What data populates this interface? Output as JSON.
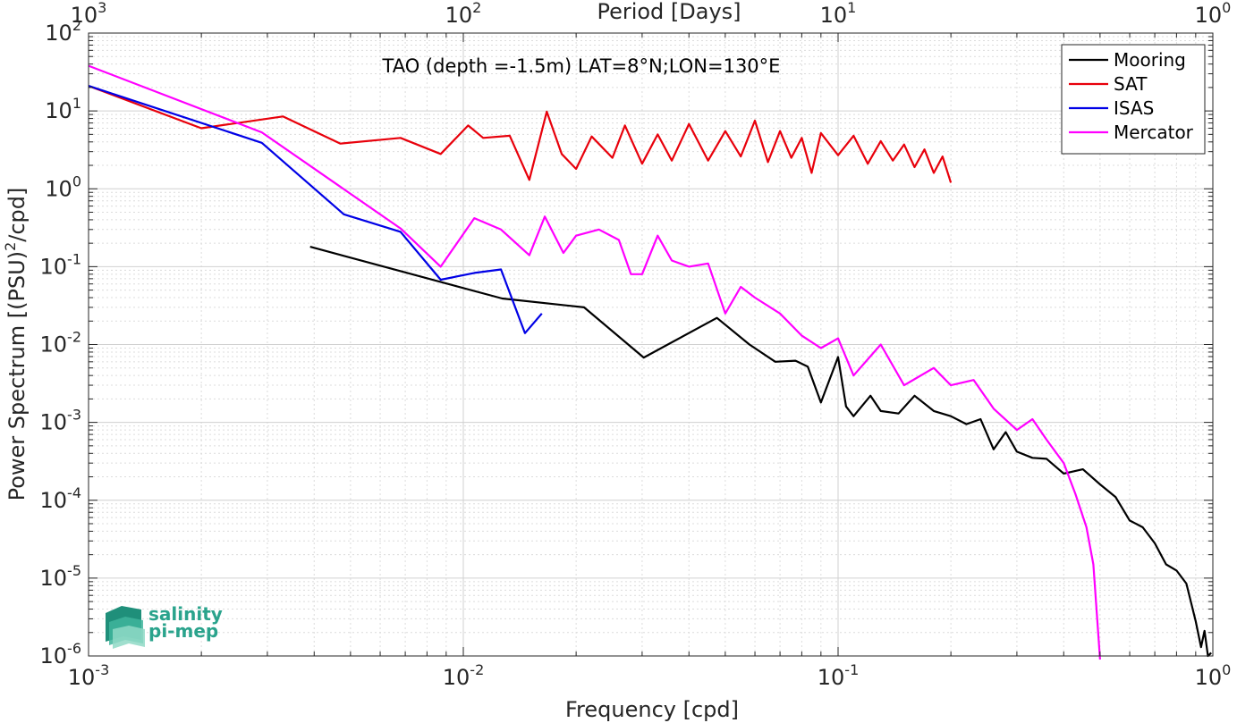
{
  "chart_data": {
    "type": "line",
    "title": "TAO (depth =-1.5m) LAT=8°N;LON=130°E",
    "xlabel": "Frequency [cpd]",
    "ylabel": "Power Spectrum [(PSU)",
    "ylabel_sup": "2",
    "ylabel_tail": "/cpd]",
    "x2label": "Period [Days]",
    "xscale": "log",
    "yscale": "log",
    "xlim": [
      0.001,
      1
    ],
    "ylim": [
      1e-06,
      100
    ],
    "grid": true,
    "legend_position": "top-right",
    "x_ticks": [
      {
        "base": "10",
        "exp": "-3"
      },
      {
        "base": "10",
        "exp": "-2"
      },
      {
        "base": "10",
        "exp": "-1"
      },
      {
        "base": "10",
        "exp": "0"
      }
    ],
    "x2_ticks": [
      {
        "base": "10",
        "exp": "3"
      },
      {
        "base": "10",
        "exp": "2"
      },
      {
        "base": "10",
        "exp": "1"
      },
      {
        "base": "10",
        "exp": "0"
      }
    ],
    "y_ticks": [
      {
        "base": "10",
        "exp": "-6"
      },
      {
        "base": "10",
        "exp": "-5"
      },
      {
        "base": "10",
        "exp": "-4"
      },
      {
        "base": "10",
        "exp": "-3"
      },
      {
        "base": "10",
        "exp": "-2"
      },
      {
        "base": "10",
        "exp": "-1"
      },
      {
        "base": "10",
        "exp": "0"
      },
      {
        "base": "10",
        "exp": "1"
      },
      {
        "base": "10",
        "exp": "2"
      }
    ],
    "series": [
      {
        "name": "Mooring",
        "color": "#000000",
        "x": [
          0.0039,
          0.0127,
          0.021,
          0.0303,
          0.0475,
          0.058,
          0.068,
          0.077,
          0.083,
          0.09,
          0.1,
          0.105,
          0.11,
          0.122,
          0.13,
          0.145,
          0.16,
          0.18,
          0.2,
          0.22,
          0.24,
          0.26,
          0.28,
          0.3,
          0.33,
          0.36,
          0.4,
          0.45,
          0.5,
          0.55,
          0.6,
          0.65,
          0.7,
          0.75,
          0.8,
          0.85,
          0.9,
          0.93,
          0.95,
          0.97,
          0.99
        ],
        "y": [
          0.18,
          0.039,
          0.03,
          0.0068,
          0.022,
          0.01,
          0.006,
          0.0062,
          0.0052,
          0.0018,
          0.0069,
          0.0016,
          0.0012,
          0.0022,
          0.0014,
          0.0013,
          0.0022,
          0.0014,
          0.0012,
          0.00095,
          0.0011,
          0.00045,
          0.00075,
          0.00042,
          0.00035,
          0.00034,
          0.00022,
          0.00025,
          0.00016,
          0.00011,
          5.5e-05,
          4.5e-05,
          2.8e-05,
          1.5e-05,
          1.25e-05,
          8.5e-06,
          2.8e-06,
          1.3e-06,
          2.1e-06,
          1e-06,
          1.1e-06
        ]
      },
      {
        "name": "SAT",
        "color": "#e8000b",
        "x": [
          0.001,
          0.002,
          0.0033,
          0.0047,
          0.0068,
          0.0087,
          0.0103,
          0.0113,
          0.0133,
          0.015,
          0.0167,
          0.0183,
          0.02,
          0.022,
          0.025,
          0.027,
          0.03,
          0.033,
          0.036,
          0.04,
          0.045,
          0.05,
          0.055,
          0.06,
          0.065,
          0.07,
          0.075,
          0.08,
          0.085,
          0.09,
          0.1,
          0.11,
          0.12,
          0.13,
          0.14,
          0.15,
          0.16,
          0.17,
          0.18,
          0.19,
          0.2
        ],
        "y": [
          21,
          6,
          8.5,
          3.8,
          4.5,
          2.8,
          6.5,
          4.5,
          4.8,
          1.3,
          9.8,
          2.8,
          1.8,
          4.7,
          2.5,
          6.5,
          2.1,
          5,
          2.3,
          6.8,
          2.3,
          5.5,
          2.6,
          7.5,
          2.2,
          5.5,
          2.5,
          4.5,
          1.6,
          5.2,
          2.7,
          4.8,
          2.1,
          4.1,
          2.3,
          3.7,
          1.9,
          3.2,
          1.6,
          2.6,
          1.2
        ]
      },
      {
        "name": "ISAS",
        "color": "#0000e6",
        "x": [
          0.001,
          0.0029,
          0.0048,
          0.0068,
          0.0087,
          0.0107,
          0.0126,
          0.0146,
          0.0162
        ],
        "y": [
          21,
          3.9,
          0.47,
          0.28,
          0.068,
          0.083,
          0.092,
          0.014,
          0.025
        ]
      },
      {
        "name": "Mercator",
        "color": "#ff00ff",
        "x": [
          0.001,
          0.0029,
          0.0068,
          0.0087,
          0.0107,
          0.0126,
          0.015,
          0.0165,
          0.0185,
          0.02,
          0.023,
          0.026,
          0.028,
          0.03,
          0.033,
          0.036,
          0.04,
          0.045,
          0.05,
          0.055,
          0.06,
          0.07,
          0.08,
          0.09,
          0.1,
          0.11,
          0.13,
          0.15,
          0.18,
          0.2,
          0.23,
          0.26,
          0.3,
          0.33,
          0.36,
          0.4,
          0.43,
          0.46,
          0.48,
          0.5
        ],
        "y": [
          38,
          5.3,
          0.31,
          0.1,
          0.42,
          0.3,
          0.14,
          0.44,
          0.15,
          0.25,
          0.3,
          0.22,
          0.08,
          0.08,
          0.25,
          0.12,
          0.1,
          0.11,
          0.025,
          0.055,
          0.04,
          0.025,
          0.013,
          0.009,
          0.012,
          0.004,
          0.01,
          0.003,
          0.005,
          0.003,
          0.0035,
          0.0015,
          0.0008,
          0.0011,
          0.0006,
          0.0003,
          0.00012,
          4.5e-05,
          1.5e-05,
          9e-07
        ]
      }
    ]
  },
  "logo": {
    "line1": "salinity",
    "line2": "pi-mep"
  }
}
